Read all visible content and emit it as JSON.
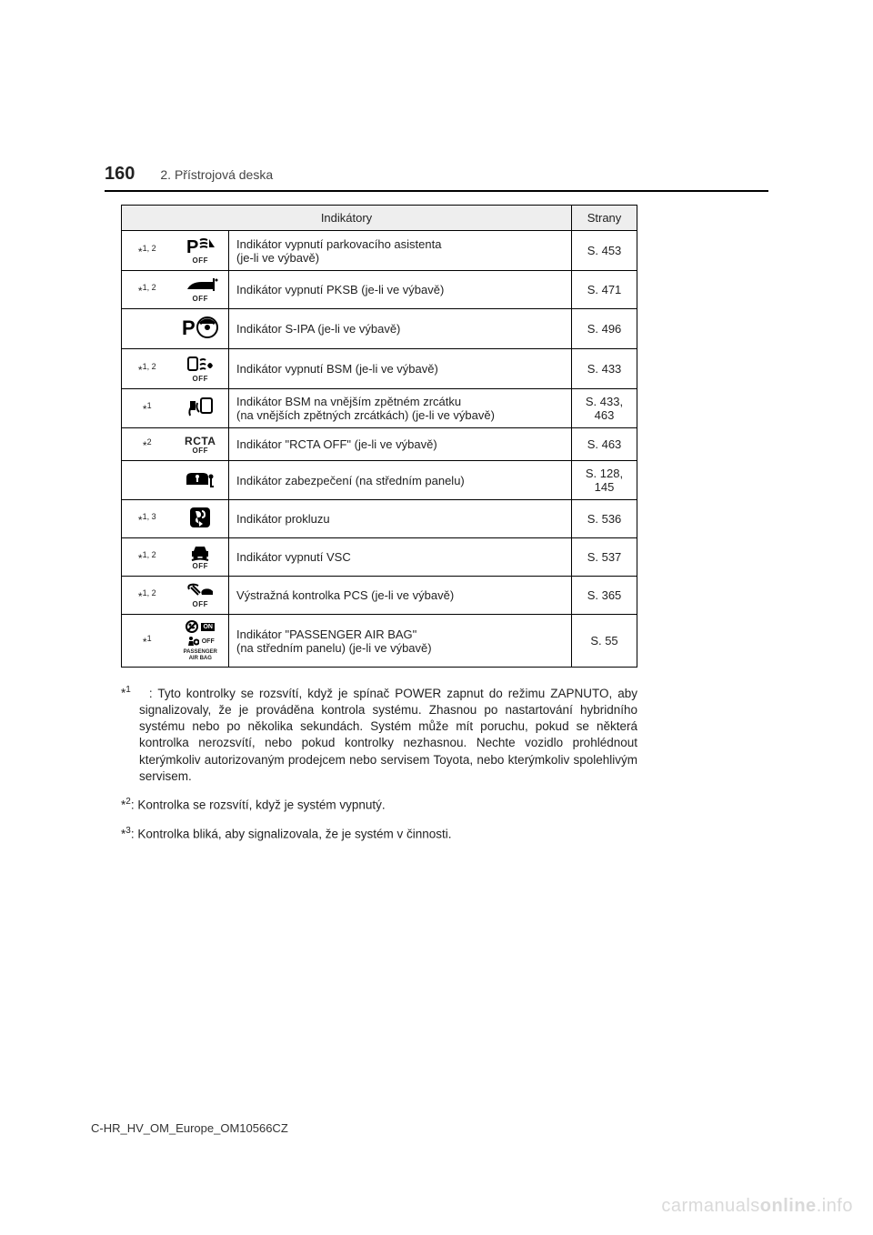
{
  "header": {
    "page_number": "160",
    "section": "2. Přístrojová deska"
  },
  "table": {
    "header_indicators": "Indikátory",
    "header_pages": "Strany",
    "rows": [
      {
        "note": "*",
        "sup": "1, 2",
        "icon": "parking-off",
        "desc1": "Indikátor vypnutí parkovacího asistenta",
        "desc2": "(je-li ve výbavě)",
        "page": "S. 453"
      },
      {
        "note": "*",
        "sup": "1, 2",
        "icon": "pksb-off",
        "desc1": "Indikátor vypnutí PKSB (je-li ve výbavě)",
        "desc2": "",
        "page": "S. 471"
      },
      {
        "note": "",
        "sup": "",
        "icon": "sipa",
        "desc1": "Indikátor S-IPA (je-li ve výbavě)",
        "desc2": "",
        "page": "S. 496"
      },
      {
        "note": "*",
        "sup": "1, 2",
        "icon": "bsm-off",
        "desc1": "Indikátor vypnutí BSM (je-li ve výbavě)",
        "desc2": "",
        "page": "S. 433"
      },
      {
        "note": "*",
        "sup": "1",
        "icon": "bsm-mirror",
        "desc1": "Indikátor BSM na vnějším zpětném zrcátku",
        "desc2": "(na vnějších zpětných zrcátkách) (je-li ve výbavě)",
        "page": "S. 433, 463"
      },
      {
        "note": "*",
        "sup": "2",
        "icon": "rcta-off",
        "desc1": "Indikátor \"RCTA OFF\" (je-li ve výbavě)",
        "desc2": "",
        "page": "S. 463"
      },
      {
        "note": "",
        "sup": "",
        "icon": "security",
        "desc1": "Indikátor zabezpečení (na středním panelu)",
        "desc2": "",
        "page": "S. 128, 145"
      },
      {
        "note": "*",
        "sup": "1, 3",
        "icon": "slip",
        "desc1": "Indikátor prokluzu",
        "desc2": "",
        "page": "S. 536"
      },
      {
        "note": "*",
        "sup": "1, 2",
        "icon": "vsc-off",
        "desc1": "Indikátor vypnutí VSC",
        "desc2": "",
        "page": "S. 537"
      },
      {
        "note": "*",
        "sup": "1, 2",
        "icon": "pcs-off",
        "desc1": "Výstražná kontrolka PCS (je-li ve výbavě)",
        "desc2": "",
        "page": "S. 365"
      },
      {
        "note": "*",
        "sup": "1",
        "icon": "airbag",
        "desc1": "Indikátor \"PASSENGER AIR BAG\"",
        "desc2": "(na středním panelu) (je-li ve výbavě)",
        "page": "S. 55"
      }
    ],
    "off_label": "OFF",
    "rcta_label": "RCTA",
    "airbag_on": "ON",
    "airbag_off": "OFF",
    "airbag_label1": "PASSENGER",
    "airbag_label2": "AIR BAG"
  },
  "footnotes": {
    "f1_mark": "*",
    "f1_sup": "1",
    "f1_text": ": Tyto kontrolky se rozsvítí, když je spínač POWER zapnut do režimu ZA­PNUTO, aby signalizovaly, že je prováděna kontrola systému. Zhasnou po nastartování hybridního systému nebo po několika sekundách. Systém může mít poruchu, pokud se některá kontrolka nerozsvítí, nebo pokud kon­trolky nezhasnou. Nechte vozidlo prohlédnout kterýmkoliv autorizovaným prodejcem nebo servisem Toyota, nebo kterýmkoliv spolehlivým servisem.",
    "f2_mark": "*",
    "f2_sup": "2",
    "f2_text": ": Kontrolka se rozsvítí, když je systém vypnutý.",
    "f3_mark": "*",
    "f3_sup": "3",
    "f3_text": ": Kontrolka bliká, aby signalizovala, že je systém v činnosti."
  },
  "doc_code": "C-HR_HV_OM_Europe_OM10566CZ",
  "watermark_a": "carmanuals",
  "watermark_b": "online",
  "watermark_c": ".info"
}
